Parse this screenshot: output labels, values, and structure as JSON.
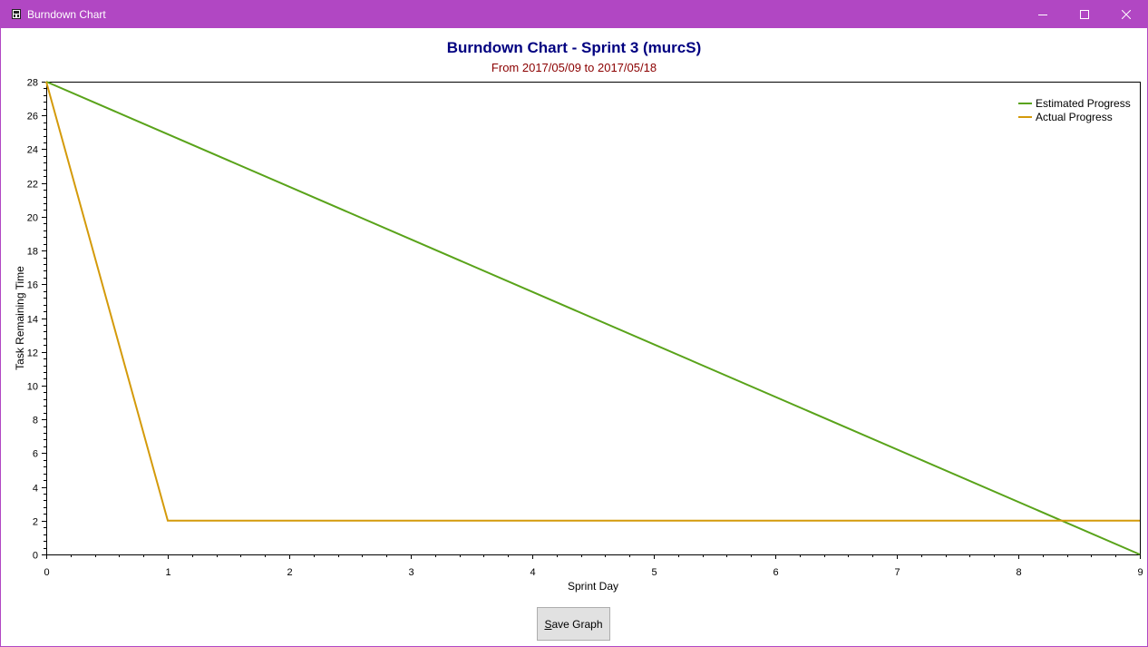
{
  "window": {
    "title": "Burndown Chart",
    "accent_color": "#b147c3",
    "controls": {
      "minimize_icon": "minimize-icon",
      "maximize_icon": "maximize-icon",
      "close_icon": "close-icon"
    }
  },
  "save_button": {
    "mnemonic": "S",
    "label_rest": "ave Graph"
  },
  "chart_data": {
    "type": "line",
    "title": "Burndown Chart - Sprint 3 (murcS)",
    "subtitle": "From 2017/05/09 to 2017/05/18",
    "title_color": "#000080",
    "subtitle_color": "#8b0000",
    "xlabel": "Sprint Day",
    "ylabel": "Task Remaining Time",
    "xlim": [
      0,
      9
    ],
    "ylim": [
      0,
      28
    ],
    "x_ticks": [
      "0",
      "1",
      "2",
      "3",
      "4",
      "5",
      "6",
      "7",
      "8",
      "9"
    ],
    "y_ticks": [
      "0",
      "2",
      "4",
      "6",
      "8",
      "10",
      "12",
      "14",
      "16",
      "18",
      "20",
      "22",
      "24",
      "26",
      "28"
    ],
    "legend_position": "top-right",
    "grid": false,
    "series": [
      {
        "name": "Estimated Progress",
        "color": "#59a31a",
        "x": [
          0,
          9
        ],
        "y": [
          28,
          0
        ]
      },
      {
        "name": "Actual Progress",
        "color": "#d49a0a",
        "x": [
          0,
          1,
          9
        ],
        "y": [
          28,
          2,
          2
        ]
      }
    ]
  }
}
